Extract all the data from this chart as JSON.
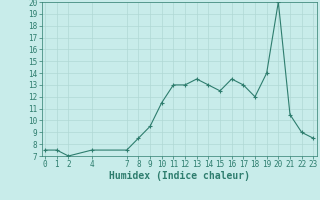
{
  "x": [
    0,
    1,
    2,
    4,
    7,
    8,
    9,
    10,
    11,
    12,
    13,
    14,
    15,
    16,
    17,
    18,
    19,
    20,
    21,
    22,
    23
  ],
  "y": [
    7.5,
    7.5,
    7.0,
    7.5,
    7.5,
    8.5,
    9.5,
    11.5,
    13.0,
    13.0,
    13.5,
    13.0,
    12.5,
    13.5,
    13.0,
    12.0,
    14.0,
    20.0,
    10.5,
    9.0,
    8.5
  ],
  "xlabel": "Humidex (Indice chaleur)",
  "ylim": [
    7,
    20
  ],
  "yticks": [
    7,
    8,
    9,
    10,
    11,
    12,
    13,
    14,
    15,
    16,
    17,
    18,
    19,
    20
  ],
  "xticks": [
    0,
    1,
    2,
    4,
    7,
    8,
    9,
    10,
    11,
    12,
    13,
    14,
    15,
    16,
    17,
    18,
    19,
    20,
    21,
    22,
    23
  ],
  "xlim": [
    -0.3,
    23.3
  ],
  "line_color": "#2e7d6e",
  "marker_color": "#2e7d6e",
  "bg_color": "#c8ecea",
  "grid_color": "#b0d8d5",
  "axis_color": "#2e7d6e",
  "xlabel_fontsize": 7,
  "tick_fontsize": 5.5
}
